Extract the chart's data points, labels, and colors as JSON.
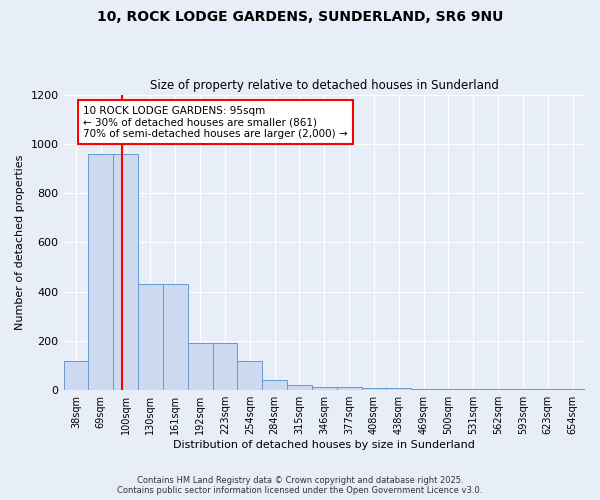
{
  "title_line1": "10, ROCK LODGE GARDENS, SUNDERLAND, SR6 9NU",
  "title_line2": "Size of property relative to detached houses in Sunderland",
  "xlabel": "Distribution of detached houses by size in Sunderland",
  "ylabel": "Number of detached properties",
  "bar_color": "#cdd9f0",
  "bar_edge_color": "#6699cc",
  "background_color": "#e8eef8",
  "grid_color": "#ffffff",
  "categories": [
    "38sqm",
    "69sqm",
    "100sqm",
    "130sqm",
    "161sqm",
    "192sqm",
    "223sqm",
    "254sqm",
    "284sqm",
    "315sqm",
    "346sqm",
    "377sqm",
    "408sqm",
    "438sqm",
    "469sqm",
    "500sqm",
    "531sqm",
    "562sqm",
    "593sqm",
    "623sqm",
    "654sqm"
  ],
  "values": [
    120,
    960,
    960,
    430,
    430,
    190,
    190,
    120,
    40,
    20,
    15,
    15,
    10,
    10,
    5,
    5,
    5,
    5,
    5,
    5,
    5
  ],
  "vline_color": "red",
  "vline_pos": 1.84,
  "annotation_text": "10 ROCK LODGE GARDENS: 95sqm\n← 30% of detached houses are smaller (861)\n70% of semi-detached houses are larger (2,000) →",
  "annotation_box_color": "white",
  "annotation_edge_color": "red",
  "ylim": [
    0,
    1200
  ],
  "yticks": [
    0,
    200,
    400,
    600,
    800,
    1000,
    1200
  ],
  "footnote1": "Contains HM Land Registry data © Crown copyright and database right 2025.",
  "footnote2": "Contains public sector information licensed under the Open Government Licence v3.0."
}
